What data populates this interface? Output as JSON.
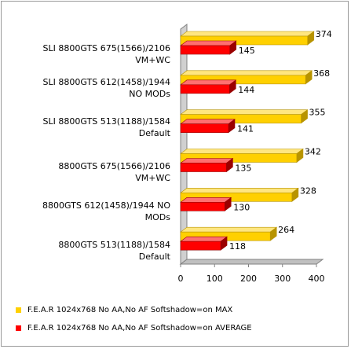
{
  "chart_data": {
    "type": "bar",
    "orientation": "horizontal",
    "title": "",
    "xlabel": "",
    "ylabel": "",
    "xlim": [
      0,
      400
    ],
    "x_ticks": [
      "0",
      "100",
      "200",
      "300",
      "400"
    ],
    "grid": false,
    "legend_position": "bottom",
    "categories": [
      "SLI 8800GTS 675(1566)/2106 VM+WC",
      "SLI 8800GTS 612(1458)/1944 NO MODs",
      "SLI 8800GTS 513(1188)/1584 Default",
      "8800GTS 675(1566)/2106 VM+WC",
      "8800GTS 612(1458)/1944 NO MODs",
      "8800GTS 513(1188)/1584 Default"
    ],
    "series": [
      {
        "name": "F.E.A.R 1024x768 No AA,No AF Softshadow=on  MAX",
        "color": "#FFD000",
        "values": [
          374,
          368,
          355,
          342,
          328,
          264
        ]
      },
      {
        "name": "F.E.A.R 1024x768 No AA,No AF Softshadow=on  AVERAGE",
        "color": "#FF0000",
        "values": [
          145,
          144,
          141,
          135,
          130,
          118
        ]
      }
    ],
    "value_labels": {
      "max": [
        "374",
        "368",
        "355",
        "342",
        "328",
        "264"
      ],
      "average": [
        "145",
        "144",
        "141",
        "135",
        "130",
        "118"
      ]
    }
  }
}
